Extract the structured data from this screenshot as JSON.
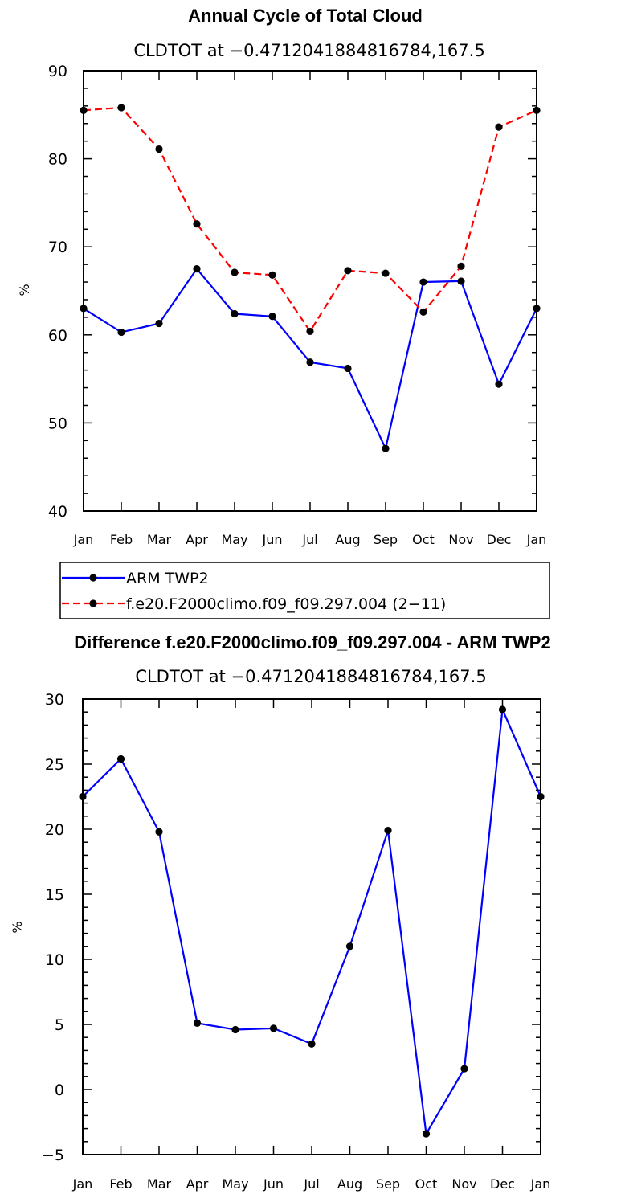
{
  "chart_data": [
    {
      "type": "line",
      "title": "Annual Cycle of Total Cloud",
      "subtitle": "CLDTOT at −0.4712041884816784,167.5",
      "xlabel": "",
      "ylabel": "%",
      "categories": [
        "Jan",
        "Feb",
        "Mar",
        "Apr",
        "May",
        "Jun",
        "Jul",
        "Aug",
        "Sep",
        "Oct",
        "Nov",
        "Dec",
        "Jan"
      ],
      "ylim": [
        40,
        90
      ],
      "yticks": [
        40,
        50,
        60,
        70,
        80,
        90
      ],
      "grid": false,
      "legend_position": "below",
      "series": [
        {
          "name": "ARM TWP2",
          "color": "#0000ff",
          "dash": "solid",
          "values": [
            63.0,
            60.3,
            61.3,
            67.5,
            62.4,
            62.1,
            56.9,
            56.2,
            47.1,
            66.0,
            66.1,
            54.4,
            63.0
          ]
        },
        {
          "name": "f.e20.F2000climo.f09_f09.297.004 (2−11)",
          "color": "#ff0000",
          "dash": "dashed",
          "values": [
            85.5,
            85.8,
            81.1,
            72.6,
            67.1,
            66.8,
            60.4,
            67.3,
            67.0,
            62.6,
            67.8,
            83.6,
            85.5
          ]
        }
      ]
    },
    {
      "type": "line",
      "title": "Difference f.e20.F2000climo.f09_f09.297.004 - ARM TWP2",
      "subtitle": "CLDTOT at −0.4712041884816784,167.5",
      "xlabel": "",
      "ylabel": "%",
      "categories": [
        "Jan",
        "Feb",
        "Mar",
        "Apr",
        "May",
        "Jun",
        "Jul",
        "Aug",
        "Sep",
        "Oct",
        "Nov",
        "Dec",
        "Jan"
      ],
      "ylim": [
        -5,
        30
      ],
      "yticks": [
        -5,
        0,
        5,
        10,
        15,
        20,
        25,
        30
      ],
      "grid": false,
      "series": [
        {
          "color": "#0000ff",
          "dash": "solid",
          "values": [
            22.5,
            25.4,
            19.8,
            5.1,
            4.6,
            4.7,
            3.5,
            11.0,
            19.9,
            -3.4,
            1.6,
            29.2,
            22.5
          ]
        }
      ]
    }
  ]
}
